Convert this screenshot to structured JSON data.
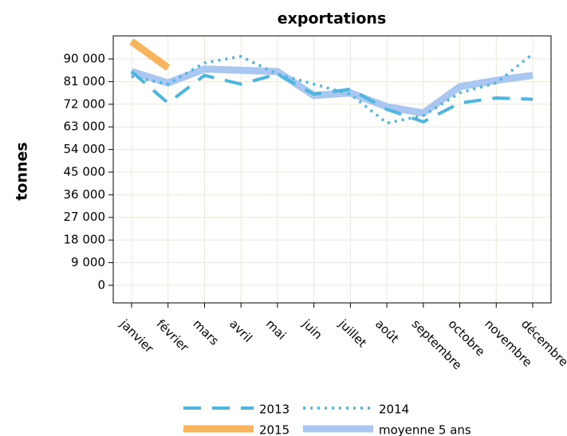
{
  "chart_data": {
    "type": "line",
    "title": "exportations",
    "ylabel": "tonnes",
    "categories": [
      "janvier",
      "février",
      "mars",
      "avril",
      "mai",
      "juin",
      "juillet",
      "août",
      "septembre",
      "octobre",
      "novembre",
      "décembre"
    ],
    "series": [
      {
        "name": "moyenne 5 ans",
        "color": "#a9c7f0",
        "values": [
          85000,
          80500,
          86000,
          85500,
          85000,
          75500,
          76500,
          71000,
          68500,
          79000,
          81500,
          83500
        ]
      },
      {
        "name": "2013",
        "color": "#4cb5e0",
        "values": [
          85000,
          72500,
          83500,
          80000,
          84000,
          76000,
          78000,
          70000,
          65000,
          72500,
          74500,
          74000
        ]
      },
      {
        "name": "2014",
        "color": "#4cb5e0",
        "values": [
          83000,
          80000,
          88500,
          91000,
          84000,
          80000,
          76000,
          64500,
          67500,
          76500,
          80500,
          92000
        ]
      },
      {
        "name": "2015",
        "color": "#f8b45c",
        "values": [
          97000,
          86500,
          null,
          null,
          null,
          null,
          null,
          null,
          null,
          null,
          null,
          null
        ]
      }
    ],
    "ylim": [
      -7000,
      99200
    ],
    "yticks": [
      0,
      {
        "value": 9000,
        "label": "9 000"
      },
      {
        "value": 18000,
        "label": "18 000"
      },
      {
        "value": 27000,
        "label": "27 000"
      },
      {
        "value": 36000,
        "label": "36 000"
      },
      {
        "value": 45000,
        "label": "45 000"
      },
      {
        "value": 54000,
        "label": "54 000"
      },
      {
        "value": 63000,
        "label": "63 000"
      },
      {
        "value": 72000,
        "label": "72 000"
      },
      {
        "value": 81000,
        "label": "81 000"
      },
      {
        "value": 90000,
        "label": "90 000"
      }
    ],
    "grid": true
  }
}
